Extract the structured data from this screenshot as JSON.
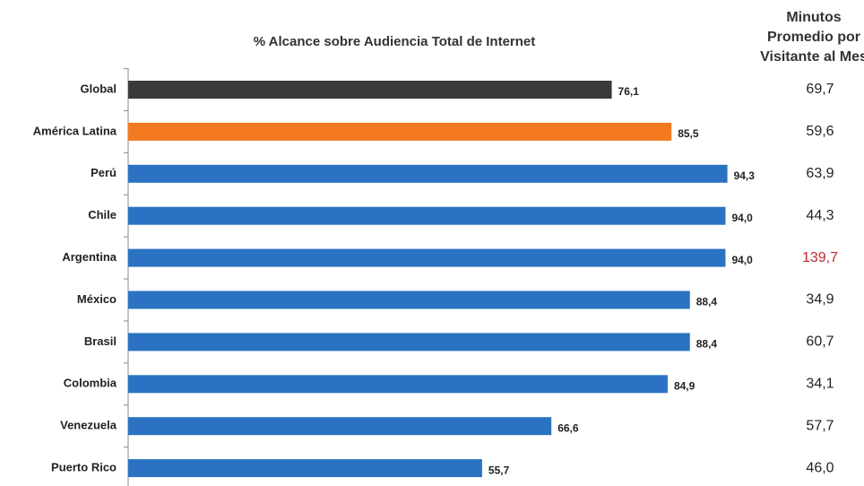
{
  "chart_data": {
    "type": "barh",
    "title": "% Alcance sobre Audiencia Total de Internet",
    "categories": [
      "Global",
      "América Latina",
      "Perú",
      "Chile",
      "Argentina",
      "México",
      "Brasil",
      "Colombia",
      "Venezuela",
      "Puerto Rico"
    ],
    "values": [
      76.1,
      85.5,
      94.3,
      94.0,
      94.0,
      88.4,
      88.4,
      84.9,
      66.6,
      55.7
    ],
    "value_labels": [
      "76,1",
      "85,5",
      "94,3",
      "94,0",
      "94,0",
      "88,4",
      "88,4",
      "84,9",
      "66,6",
      "55,7"
    ],
    "colors": [
      "#3a3a3a",
      "#f47a20",
      "#2b73c2",
      "#2b73c2",
      "#2b73c2",
      "#2b73c2",
      "#2b73c2",
      "#2b73c2",
      "#2b73c2",
      "#2b73c2"
    ],
    "xlim": [
      0,
      100
    ],
    "side_column": {
      "title": [
        "Minutos",
        "Promedio por",
        "Visitante al Mes"
      ],
      "values": [
        69.7,
        59.6,
        63.9,
        44.3,
        139.7,
        34.9,
        60.7,
        34.1,
        57.7,
        46.0
      ],
      "value_labels": [
        "69,7",
        "59,6",
        "63,9",
        "44,3",
        "139,7",
        "34,9",
        "60,7",
        "34,1",
        "57,7",
        "46,0"
      ],
      "colors": [
        "#222222",
        "#222222",
        "#222222",
        "#222222",
        "#c4262e",
        "#222222",
        "#222222",
        "#222222",
        "#222222",
        "#222222"
      ]
    }
  }
}
